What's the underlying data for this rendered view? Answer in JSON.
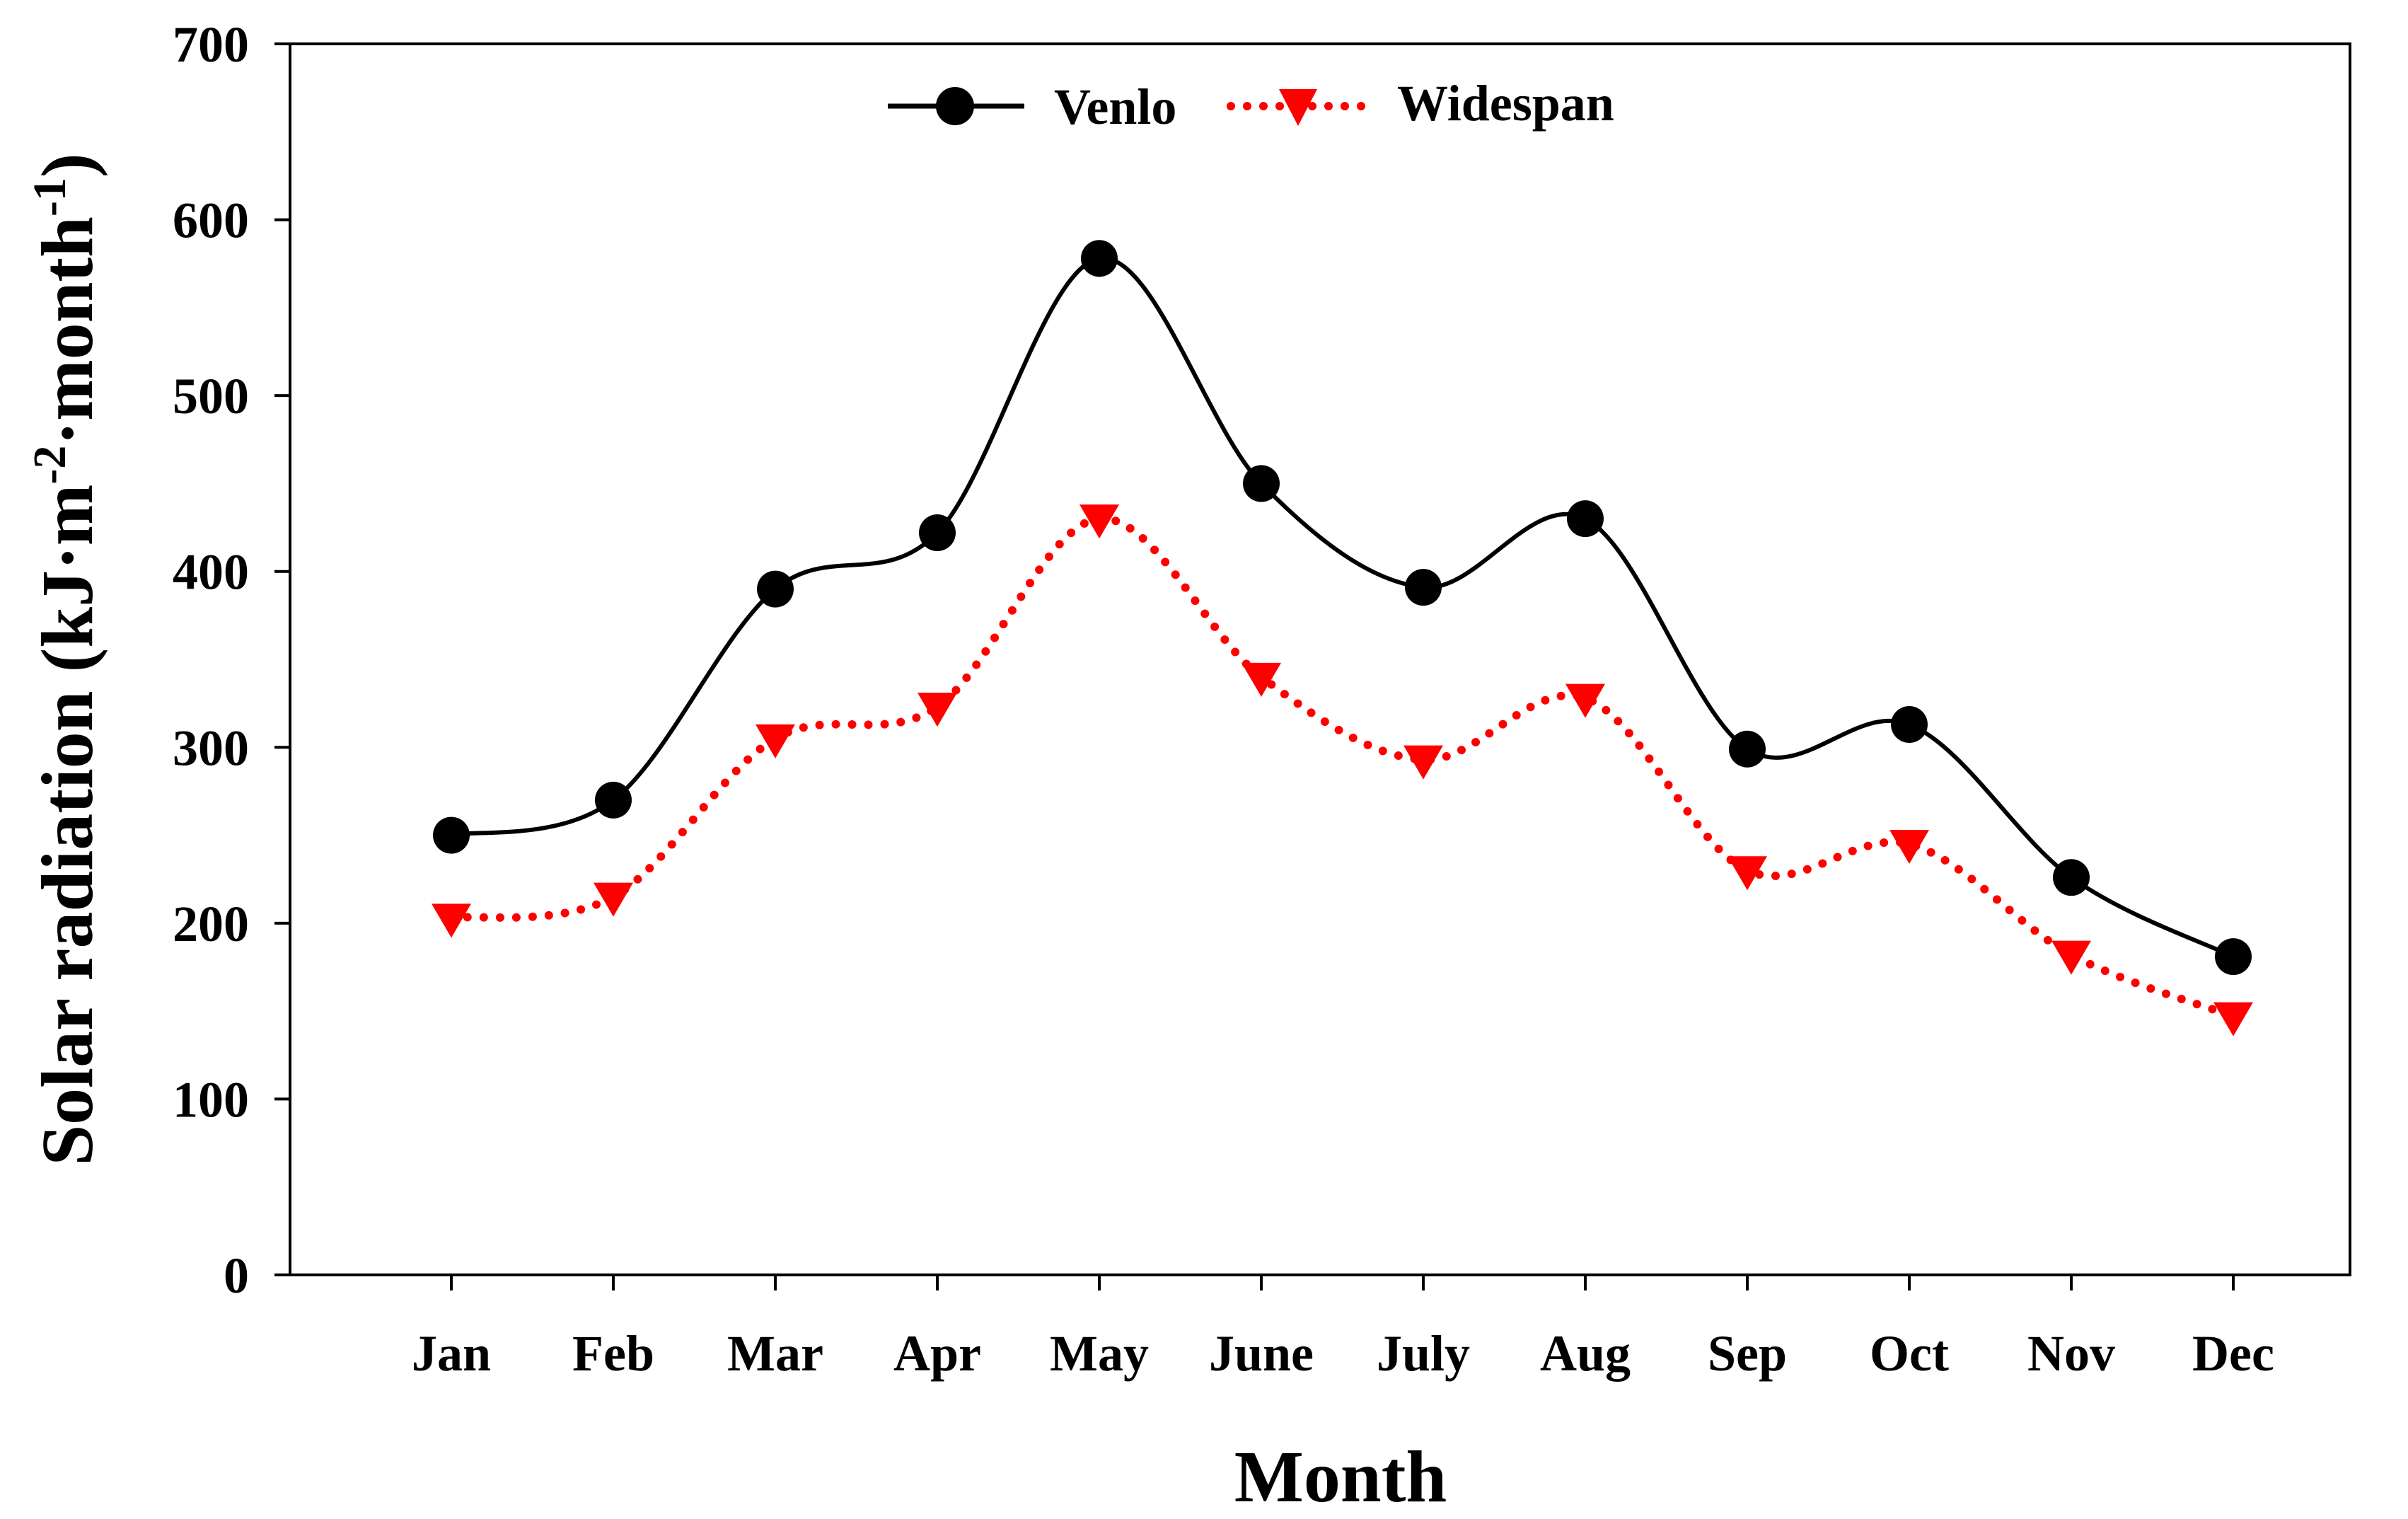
{
  "chart_data": {
    "type": "line",
    "title": "",
    "xlabel": "Month",
    "ylabel": {
      "main": "Solar radiation (kJ·m",
      "sup1": "-2",
      "mid": "·month",
      "sup2": "-1",
      "end": ")"
    },
    "ylim": [
      0,
      700
    ],
    "yticks": [
      0,
      100,
      200,
      300,
      400,
      500,
      600,
      700
    ],
    "categories": [
      "Jan",
      "Feb",
      "Mar",
      "Apr",
      "May",
      "June",
      "July",
      "Aug",
      "Sep",
      "Oct",
      "Nov",
      "Dec"
    ],
    "series": [
      {
        "name": "Venlo",
        "color": "#000000",
        "line_style": "solid",
        "marker": "circle",
        "values": [
          250,
          270,
          390,
          422,
          578,
          450,
          391,
          430,
          299,
          313,
          226,
          181
        ]
      },
      {
        "name": "Widespan",
        "color": "#ff0000",
        "line_style": "dotted",
        "marker": "triangle-down",
        "values": [
          203,
          215,
          305,
          323,
          430,
          340,
          293,
          328,
          230,
          245,
          182,
          147
        ]
      }
    ],
    "legend_position": "top-center",
    "grid": false
  }
}
